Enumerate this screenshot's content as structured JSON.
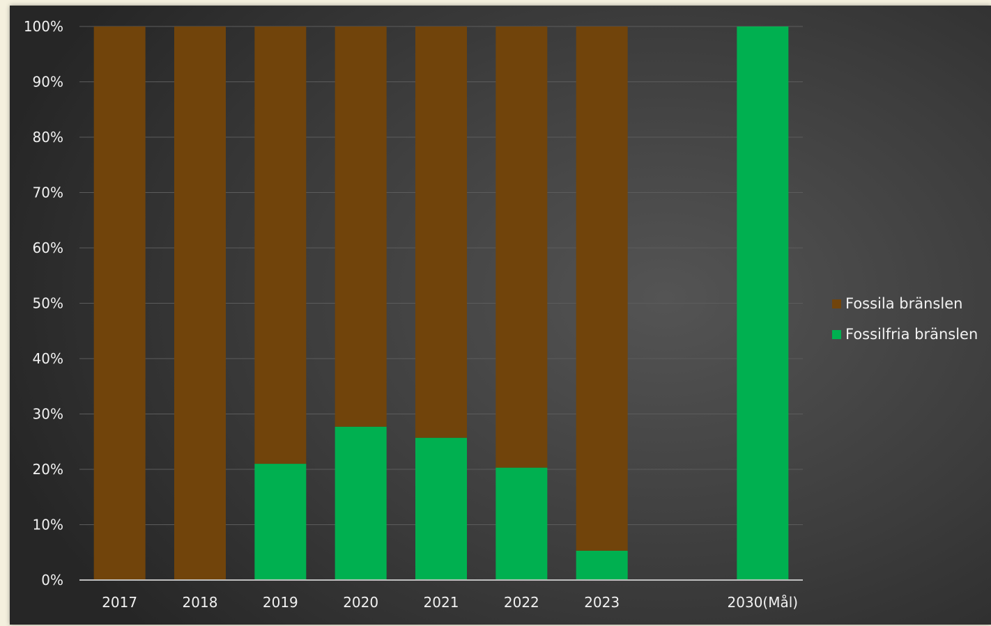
{
  "colors": {
    "fossil": "#71440b",
    "fossilfree": "#00b050",
    "grid": "#5c5c5c",
    "axis": "#c0c0c0"
  },
  "chart_data": {
    "type": "bar",
    "stacked": true,
    "categories": [
      "2017",
      "2018",
      "2019",
      "2020",
      "2021",
      "2022",
      "2023",
      "",
      "2030(Mål)"
    ],
    "series": [
      {
        "name": "Fossilfria bränslen",
        "color": "#00b050",
        "values": [
          0,
          0,
          21,
          27.7,
          25.7,
          20.3,
          5.3,
          null,
          100
        ]
      },
      {
        "name": "Fossila bränslen",
        "color": "#71440b",
        "values": [
          100,
          100,
          79,
          72.3,
          74.3,
          79.7,
          94.7,
          null,
          0
        ]
      }
    ],
    "y_ticks": [
      "0%",
      "10%",
      "20%",
      "30%",
      "40%",
      "50%",
      "60%",
      "70%",
      "80%",
      "90%",
      "100%"
    ],
    "ylim": [
      0,
      100
    ],
    "grid": true,
    "legend_position": "right"
  },
  "legend": {
    "items": [
      {
        "label": "Fossila bränslen",
        "color": "#71440b"
      },
      {
        "label": "Fossilfria bränslen",
        "color": "#00b050"
      }
    ]
  }
}
